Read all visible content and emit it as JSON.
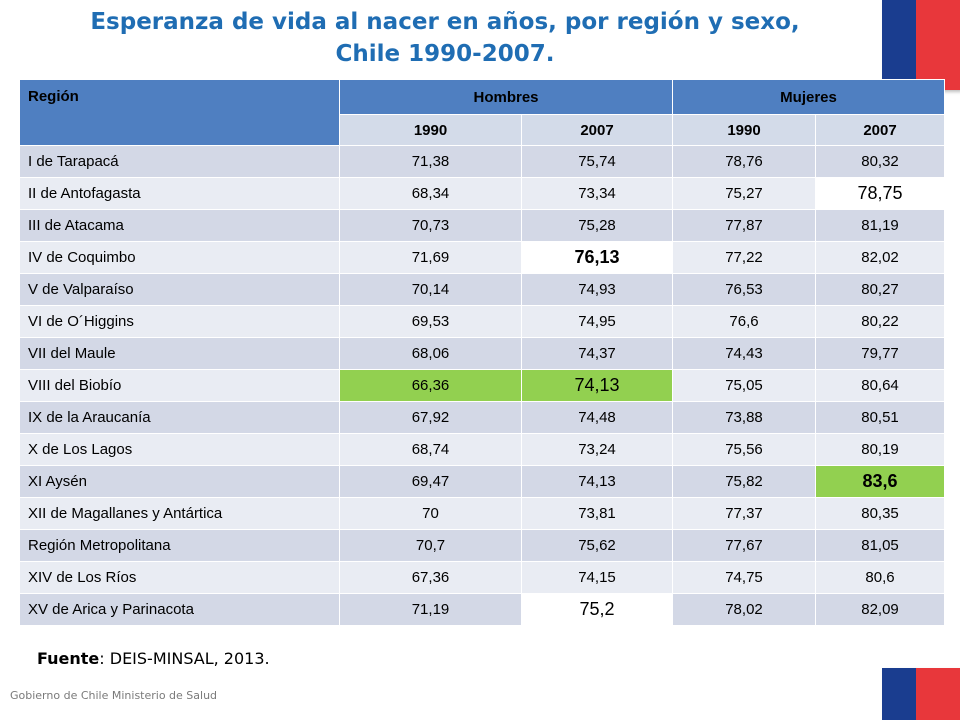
{
  "title": {
    "line1": "Esperanza de vida al nacer en años, por región y sexo,",
    "line2": "Chile 1990-2007."
  },
  "table": {
    "header_region": "Región",
    "header_men": "Hombres",
    "header_women": "Mujeres",
    "years": [
      "1990",
      "2007",
      "1990",
      "2007"
    ],
    "rows": [
      [
        "I de Tarapacá",
        "71,38",
        "75,74",
        "78,76",
        "80,32"
      ],
      [
        "II de Antofagasta",
        "68,34",
        "73,34",
        "75,27",
        "78,75"
      ],
      [
        "III de Atacama",
        "70,73",
        "75,28",
        "77,87",
        "81,19"
      ],
      [
        "IV de Coquimbo",
        "71,69",
        "76,13",
        "77,22",
        "82,02"
      ],
      [
        "V de Valparaíso",
        "70,14",
        "74,93",
        "76,53",
        "80,27"
      ],
      [
        "VI de O´Higgins",
        "69,53",
        "74,95",
        "76,6",
        "80,22"
      ],
      [
        "VII del Maule",
        "68,06",
        "74,37",
        "74,43",
        "79,77"
      ],
      [
        "VIII del Biobío",
        "66,36",
        "74,13",
        "75,05",
        "80,64"
      ],
      [
        "IX de la Araucanía",
        "67,92",
        "74,48",
        "73,88",
        "80,51"
      ],
      [
        "X de Los Lagos",
        "68,74",
        "73,24",
        "75,56",
        "80,19"
      ],
      [
        "XI Aysén",
        "69,47",
        "74,13",
        "75,82",
        "83,6"
      ],
      [
        "XII de Magallanes y Antártica",
        "70",
        "73,81",
        "77,37",
        "80,35"
      ],
      [
        "Región Metropolitana",
        "70,7",
        "75,62",
        "77,67",
        "81,05"
      ],
      [
        "XIV de Los Ríos",
        "67,36",
        "74,15",
        "74,75",
        "80,6"
      ],
      [
        "XV de Arica y Parinacota",
        "71,19",
        "75,2",
        "78,02",
        "82,09"
      ]
    ],
    "highlights": {
      "1-4": "hl-white",
      "3-2": "hl-white-b",
      "7-1": "hl-green",
      "7-2": "hl-green-l",
      "10-4": "hl-green-b",
      "14-2": "hl-white"
    },
    "colors": {
      "header_blue": "#4f7fc1",
      "row_dark": "#d3d8e6",
      "row_light": "#e9ecf3",
      "highlight_green": "#92d050",
      "title_blue": "#1f6db3"
    }
  },
  "source": {
    "label": "Fuente",
    "text": ": DEIS-MINSAL, 2013."
  },
  "footer": "Gobierno de Chile Ministerio de Salud"
}
